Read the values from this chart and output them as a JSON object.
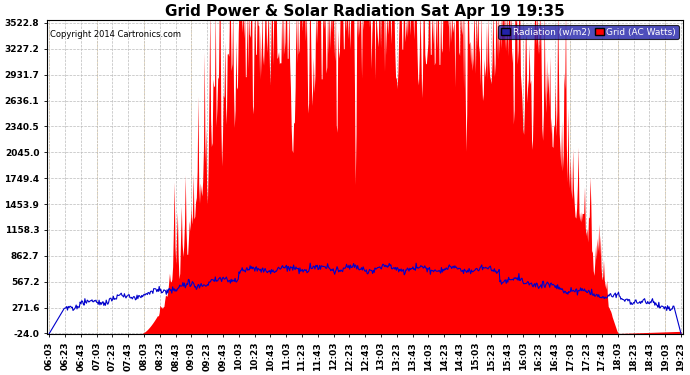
{
  "title": "Grid Power & Solar Radiation Sat Apr 19 19:35",
  "copyright": "Copyright 2014 Cartronics.com",
  "legend_radiation": "Radiation (w/m2)",
  "legend_grid": "Grid (AC Watts)",
  "yticks": [
    3522.8,
    3227.2,
    2931.7,
    2636.1,
    2340.5,
    2045.0,
    1749.4,
    1453.9,
    1158.3,
    862.7,
    567.2,
    271.6,
    -24.0
  ],
  "ymin": -24.0,
  "ymax": 3522.8,
  "background_color": "#ffffff",
  "plot_bg_color": "#ffffff",
  "radiation_fill_color": "#ff0000",
  "radiation_line_color": "#ff0000",
  "grid_line_color": "#0000cc",
  "title_fontsize": 11,
  "axis_fontsize": 6.5,
  "x_start_min": 363,
  "x_end_min": 1163
}
